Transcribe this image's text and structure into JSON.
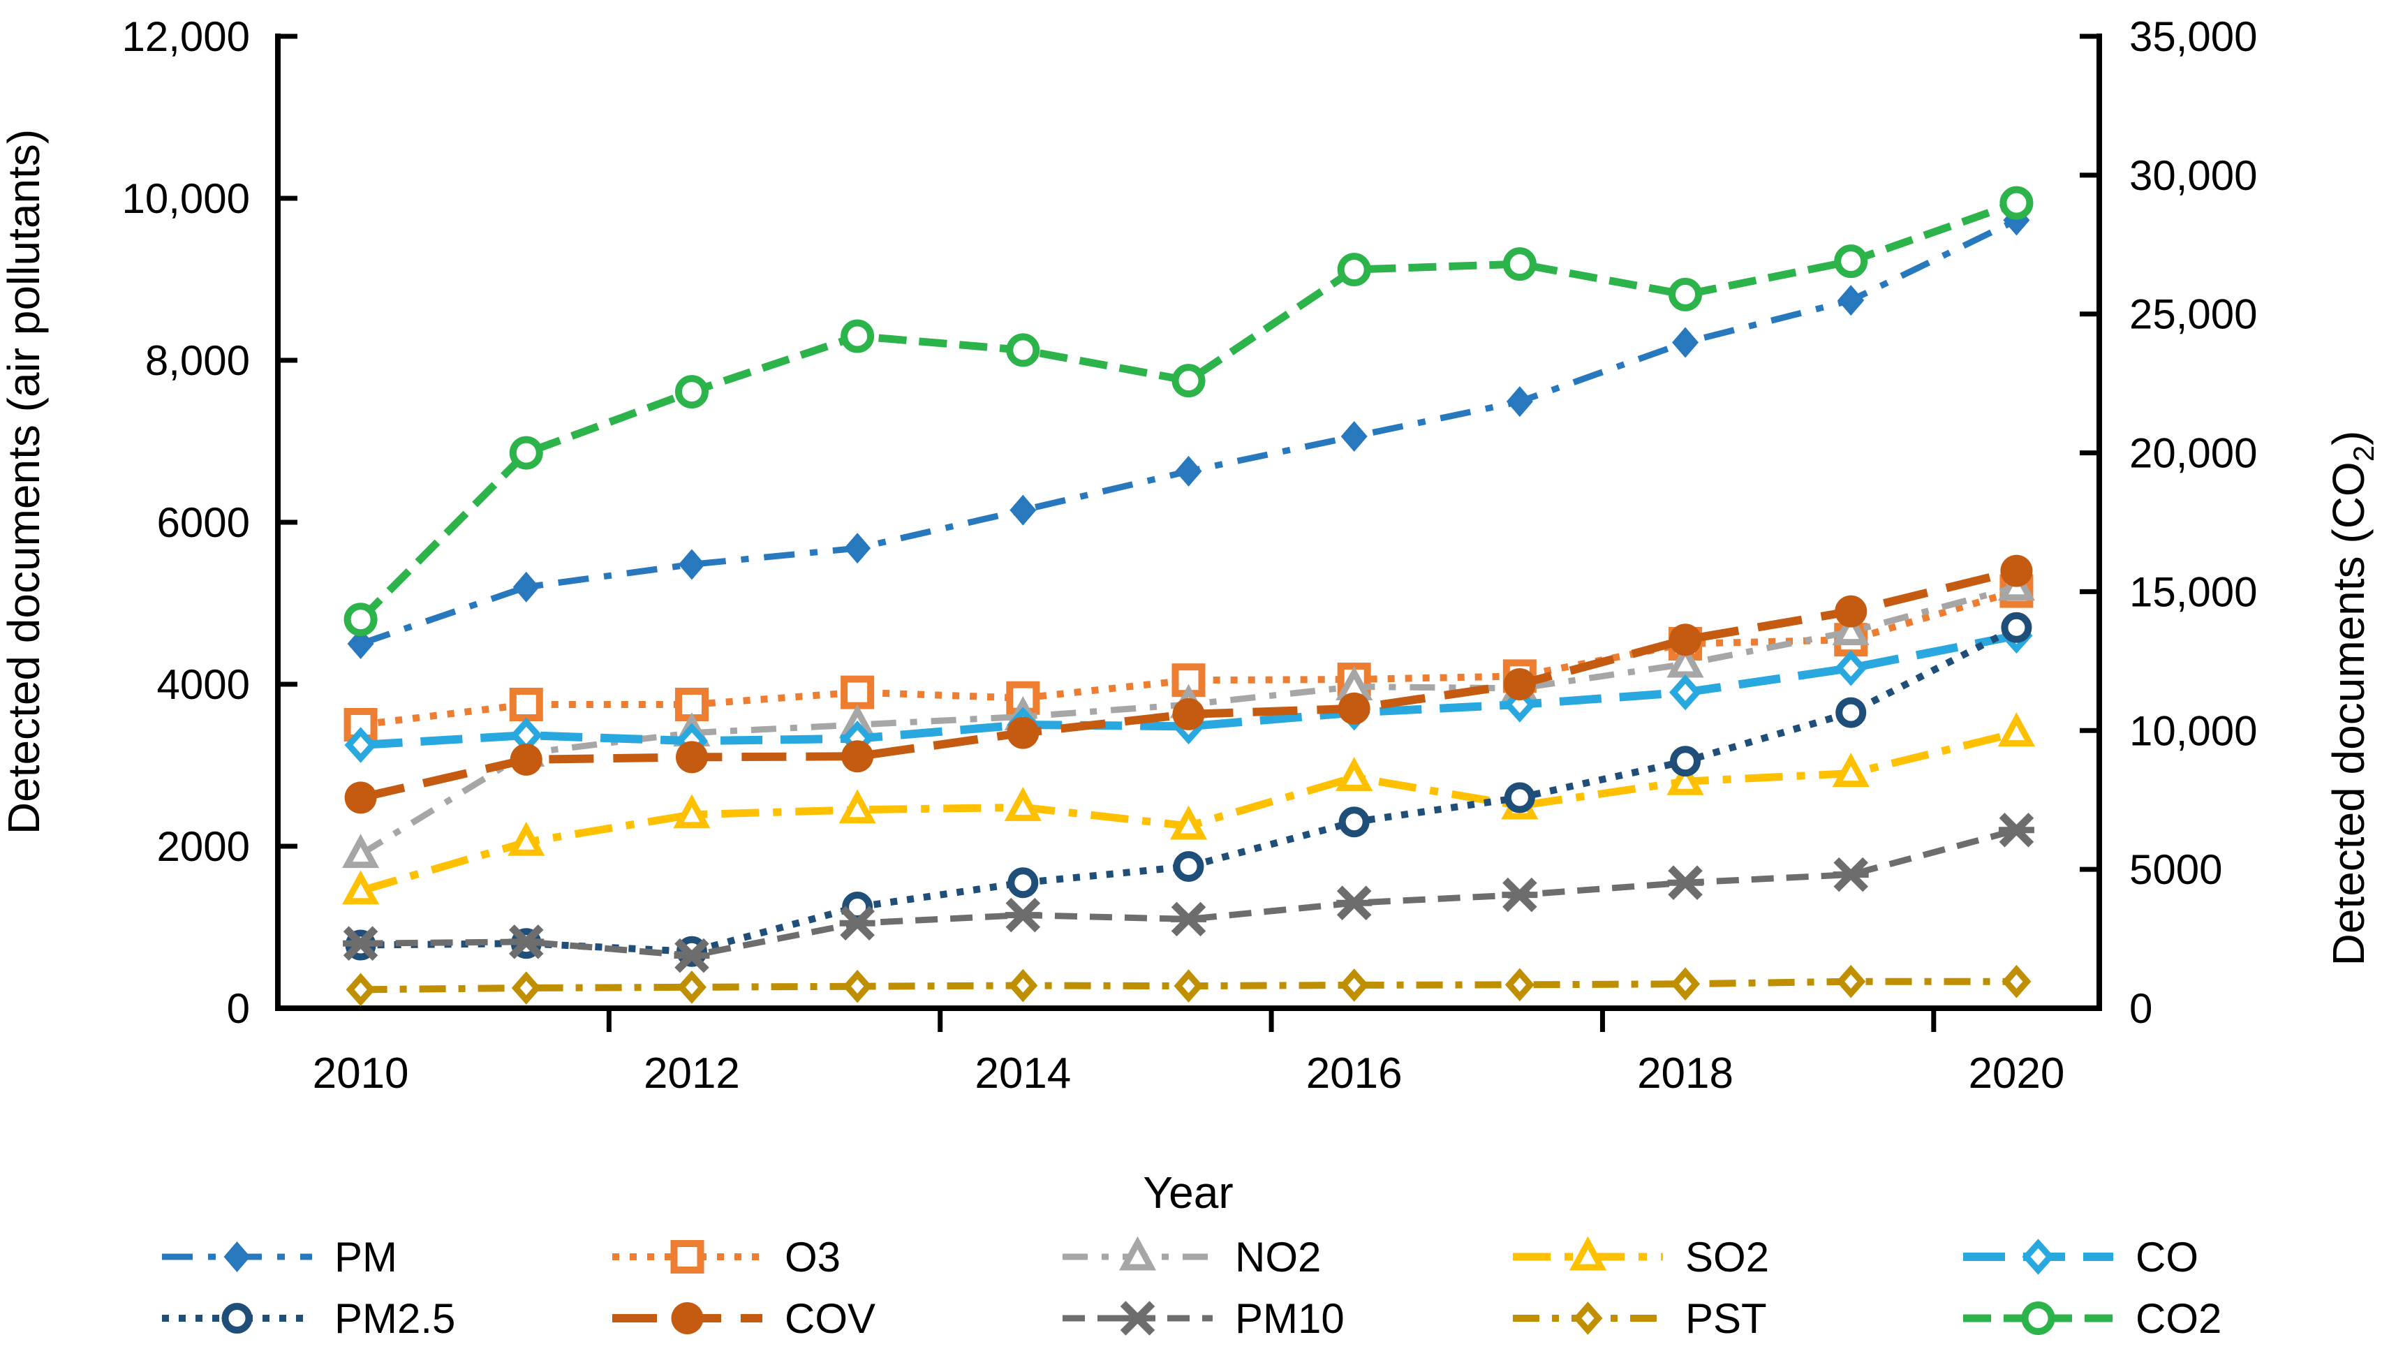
{
  "chart_data": {
    "type": "line",
    "title": "",
    "xlabel": "Year",
    "ylabel_left": "Detected documents (air pollutants)",
    "ylabel_right_parts": [
      "Detected documents (CO",
      "2",
      ")"
    ],
    "x": [
      2010,
      2011,
      2012,
      2013,
      2014,
      2015,
      2016,
      2017,
      2018,
      2019,
      2020
    ],
    "x_ticks": [
      {
        "label": "2010",
        "year": 2010
      },
      {
        "label": "2012",
        "year": 2012
      },
      {
        "label": "2014",
        "year": 2014
      },
      {
        "label": "2016",
        "year": 2016
      },
      {
        "label": "2018",
        "year": 2018
      },
      {
        "label": "2020",
        "year": 2020
      }
    ],
    "left_axis": {
      "min": 0,
      "max": 12000,
      "ticks": [
        {
          "label": "12,000",
          "value": 12000
        },
        {
          "label": "10,000",
          "value": 10000
        },
        {
          "label": "8,000",
          "value": 8000
        },
        {
          "label": "6000",
          "value": 6000
        },
        {
          "label": "4000",
          "value": 4000
        },
        {
          "label": "2000",
          "value": 2000
        },
        {
          "label": "0",
          "value": 0
        }
      ]
    },
    "right_axis": {
      "min": 0,
      "max": 35000,
      "ticks": [
        {
          "label": "35,000",
          "value": 35000
        },
        {
          "label": "30,000",
          "value": 30000
        },
        {
          "label": "25,000",
          "value": 25000
        },
        {
          "label": "20,000",
          "value": 20000
        },
        {
          "label": "15,000",
          "value": 15000
        },
        {
          "label": "10,000",
          "value": 10000
        },
        {
          "label": "5000",
          "value": 5000
        },
        {
          "label": "0",
          "value": 0
        }
      ]
    },
    "series": [
      {
        "name": "PM",
        "axis": "left",
        "color": "#2878BE",
        "width": 9,
        "dash": "44 22 11 22",
        "marker": "diamond-filled",
        "msize": 21,
        "values": [
          4500,
          5200,
          5480,
          5680,
          6150,
          6630,
          7060,
          7490,
          8220,
          8740,
          9730
        ]
      },
      {
        "name": "O3",
        "axis": "left",
        "color": "#ED7D31",
        "width": 10,
        "dash": "10 15",
        "marker": "square-open",
        "msize": 19,
        "values": [
          3500,
          3750,
          3750,
          3900,
          3830,
          4050,
          4060,
          4100,
          4500,
          4550,
          5150
        ]
      },
      {
        "name": "NO2",
        "axis": "left",
        "color": "#A6A6A6",
        "width": 9,
        "dash": "36 20 10 20",
        "marker": "triangle-open",
        "msize": 20,
        "values": [
          1900,
          3150,
          3400,
          3500,
          3600,
          3750,
          3970,
          3950,
          4250,
          4650,
          5200
        ]
      },
      {
        "name": "SO2",
        "axis": "left",
        "color": "#FFC000",
        "width": 11,
        "dash": "54 20 12 20",
        "marker": "triangle-open",
        "msize": 20,
        "values": [
          1450,
          2050,
          2390,
          2450,
          2480,
          2250,
          2850,
          2500,
          2800,
          2900,
          3400
        ]
      },
      {
        "name": "CO",
        "axis": "left",
        "color": "#28A8DF",
        "width": 12,
        "dash": "60 26",
        "marker": "diamond-open",
        "msize": 19,
        "values": [
          3250,
          3370,
          3300,
          3330,
          3500,
          3480,
          3650,
          3750,
          3900,
          4200,
          4600
        ]
      },
      {
        "name": "PM2.5",
        "axis": "left",
        "color": "#1F4E79",
        "width": 10,
        "dash": "10 14",
        "marker": "circle-open",
        "msize": 17,
        "values": [
          780,
          800,
          700,
          1250,
          1550,
          1750,
          2300,
          2600,
          3050,
          3650,
          4700
        ]
      },
      {
        "name": "COV",
        "axis": "left",
        "color": "#C55A11",
        "width": 12,
        "dash": "64 28",
        "marker": "circle-filled",
        "msize": 23,
        "values": [
          2600,
          3070,
          3100,
          3110,
          3400,
          3630,
          3700,
          4000,
          4550,
          4900,
          5400
        ]
      },
      {
        "name": "PM10",
        "axis": "left",
        "color": "#6D6D6D",
        "width": 9,
        "dash": "32 18",
        "marker": "x-star",
        "msize": 19,
        "values": [
          800,
          820,
          650,
          1050,
          1150,
          1100,
          1300,
          1400,
          1550,
          1650,
          2200
        ]
      },
      {
        "name": "PST",
        "axis": "left",
        "color": "#BF8F00",
        "width": 10,
        "dash": "38 18 10 18",
        "marker": "diamond-open",
        "msize": 17,
        "values": [
          230,
          250,
          260,
          270,
          280,
          275,
          285,
          290,
          300,
          330,
          330
        ]
      },
      {
        "name": "CO2",
        "axis": "right",
        "color": "#2CB34A",
        "width": 11,
        "dash": "40 18",
        "marker": "circle-open",
        "msize": 19,
        "values": [
          14000,
          20000,
          22200,
          24200,
          23700,
          22600,
          26600,
          26800,
          25700,
          26900,
          29000
        ]
      }
    ],
    "legend_position": "bottom",
    "grid": false
  },
  "legend": {
    "rows": [
      [
        "PM",
        "O3",
        "NO2",
        "SO2",
        "CO"
      ],
      [
        "PM2.5",
        "COV",
        "PM10",
        "PST",
        "CO2"
      ]
    ]
  },
  "colors": {
    "axis": "#000000",
    "background": "#ffffff"
  }
}
